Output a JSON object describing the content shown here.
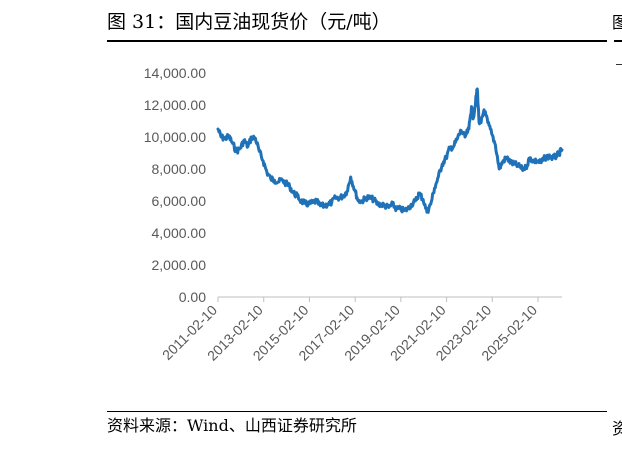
{
  "figure": {
    "title": "图 31：国内豆油现货价（元/吨）",
    "source": "资料来源：Wind、山西证券研究所",
    "next_panel_title_fragment": "图",
    "next_panel_source_fragment": "资"
  },
  "colors": {
    "series": "#1f72b8",
    "axis": "#bfbfbf",
    "text": "#595959"
  },
  "chart_data": {
    "type": "line",
    "title": "",
    "xlabel": "",
    "ylabel": "",
    "ylim": [
      0,
      14000
    ],
    "xlim": [
      "2011-02-10",
      "2026-02-28"
    ],
    "yticks": [
      "0.00",
      "2,000.00",
      "4,000.00",
      "6,000.00",
      "8,000.00",
      "10,000.00",
      "12,000.00",
      "14,000.00"
    ],
    "xticks": [
      "2011-02-10",
      "2013-02-10",
      "2015-02-10",
      "2017-02-10",
      "2019-02-10",
      "2021-02-10",
      "2023-02-10",
      "2025-02-10"
    ],
    "grid": false,
    "legend": "none",
    "series": [
      {
        "name": "",
        "points": [
          [
            "2011-02-10",
            10500
          ],
          [
            "2011-04-01",
            10000
          ],
          [
            "2011-06-01",
            9900
          ],
          [
            "2011-08-01",
            10050
          ],
          [
            "2011-10-01",
            9600
          ],
          [
            "2011-12-01",
            9100
          ],
          [
            "2012-02-01",
            9300
          ],
          [
            "2012-04-01",
            9800
          ],
          [
            "2012-06-01",
            9400
          ],
          [
            "2012-08-01",
            10000
          ],
          [
            "2012-10-01",
            9900
          ],
          [
            "2012-12-01",
            9100
          ],
          [
            "2013-02-01",
            8500
          ],
          [
            "2013-04-01",
            7800
          ],
          [
            "2013-06-01",
            7400
          ],
          [
            "2013-08-01",
            7300
          ],
          [
            "2013-10-01",
            7200
          ],
          [
            "2013-12-01",
            7300
          ],
          [
            "2014-02-01",
            7100
          ],
          [
            "2014-04-01",
            6900
          ],
          [
            "2014-06-01",
            6500
          ],
          [
            "2014-08-01",
            6300
          ],
          [
            "2014-10-01",
            6000
          ],
          [
            "2014-12-01",
            5850
          ],
          [
            "2015-02-01",
            5800
          ],
          [
            "2015-04-01",
            5900
          ],
          [
            "2015-06-01",
            6000
          ],
          [
            "2015-08-01",
            5700
          ],
          [
            "2015-10-01",
            5700
          ],
          [
            "2015-12-01",
            5800
          ],
          [
            "2016-02-01",
            5900
          ],
          [
            "2016-04-01",
            6200
          ],
          [
            "2016-06-01",
            6200
          ],
          [
            "2016-08-01",
            6300
          ],
          [
            "2016-10-01",
            6600
          ],
          [
            "2016-12-01",
            7500
          ],
          [
            "2017-02-01",
            6700
          ],
          [
            "2017-04-01",
            6000
          ],
          [
            "2017-06-01",
            6000
          ],
          [
            "2017-08-01",
            6200
          ],
          [
            "2017-10-01",
            6200
          ],
          [
            "2017-12-01",
            6100
          ],
          [
            "2018-02-01",
            5800
          ],
          [
            "2018-04-01",
            5800
          ],
          [
            "2018-06-01",
            5700
          ],
          [
            "2018-08-01",
            5600
          ],
          [
            "2018-10-01",
            5800
          ],
          [
            "2018-12-01",
            5500
          ],
          [
            "2019-02-01",
            5500
          ],
          [
            "2019-04-01",
            5400
          ],
          [
            "2019-06-01",
            5500
          ],
          [
            "2019-08-01",
            5800
          ],
          [
            "2019-10-01",
            6000
          ],
          [
            "2019-12-01",
            6500
          ],
          [
            "2020-02-01",
            6100
          ],
          [
            "2020-04-01",
            5300
          ],
          [
            "2020-06-01",
            5800
          ],
          [
            "2020-08-01",
            6800
          ],
          [
            "2020-10-01",
            7500
          ],
          [
            "2020-12-01",
            8300
          ],
          [
            "2021-02-01",
            8700
          ],
          [
            "2021-04-01",
            9300
          ],
          [
            "2021-06-01",
            9400
          ],
          [
            "2021-08-01",
            9900
          ],
          [
            "2021-10-01",
            10400
          ],
          [
            "2021-12-01",
            10000
          ],
          [
            "2022-02-01",
            10500
          ],
          [
            "2022-03-15",
            11900
          ],
          [
            "2022-04-15",
            11200
          ],
          [
            "2022-06-01",
            12600
          ],
          [
            "2022-06-15",
            13000
          ],
          [
            "2022-07-15",
            10900
          ],
          [
            "2022-08-15",
            10900
          ],
          [
            "2022-10-01",
            11700
          ],
          [
            "2022-12-01",
            10900
          ],
          [
            "2023-02-01",
            10200
          ],
          [
            "2023-04-01",
            9500
          ],
          [
            "2023-06-01",
            8000
          ],
          [
            "2023-08-01",
            8500
          ],
          [
            "2023-10-01",
            8700
          ],
          [
            "2023-12-01",
            8400
          ],
          [
            "2024-02-01",
            8300
          ],
          [
            "2024-04-01",
            8200
          ],
          [
            "2024-06-01",
            8000
          ],
          [
            "2024-08-01",
            8100
          ],
          [
            "2024-10-01",
            8700
          ],
          [
            "2024-12-01",
            8500
          ],
          [
            "2025-02-01",
            8500
          ],
          [
            "2025-04-01",
            8400
          ],
          [
            "2025-06-01",
            8700
          ],
          [
            "2025-08-01",
            8800
          ],
          [
            "2025-10-01",
            8700
          ],
          [
            "2025-12-01",
            8800
          ],
          [
            "2026-01-15",
            9000
          ],
          [
            "2026-02-28",
            9200
          ]
        ]
      }
    ]
  }
}
